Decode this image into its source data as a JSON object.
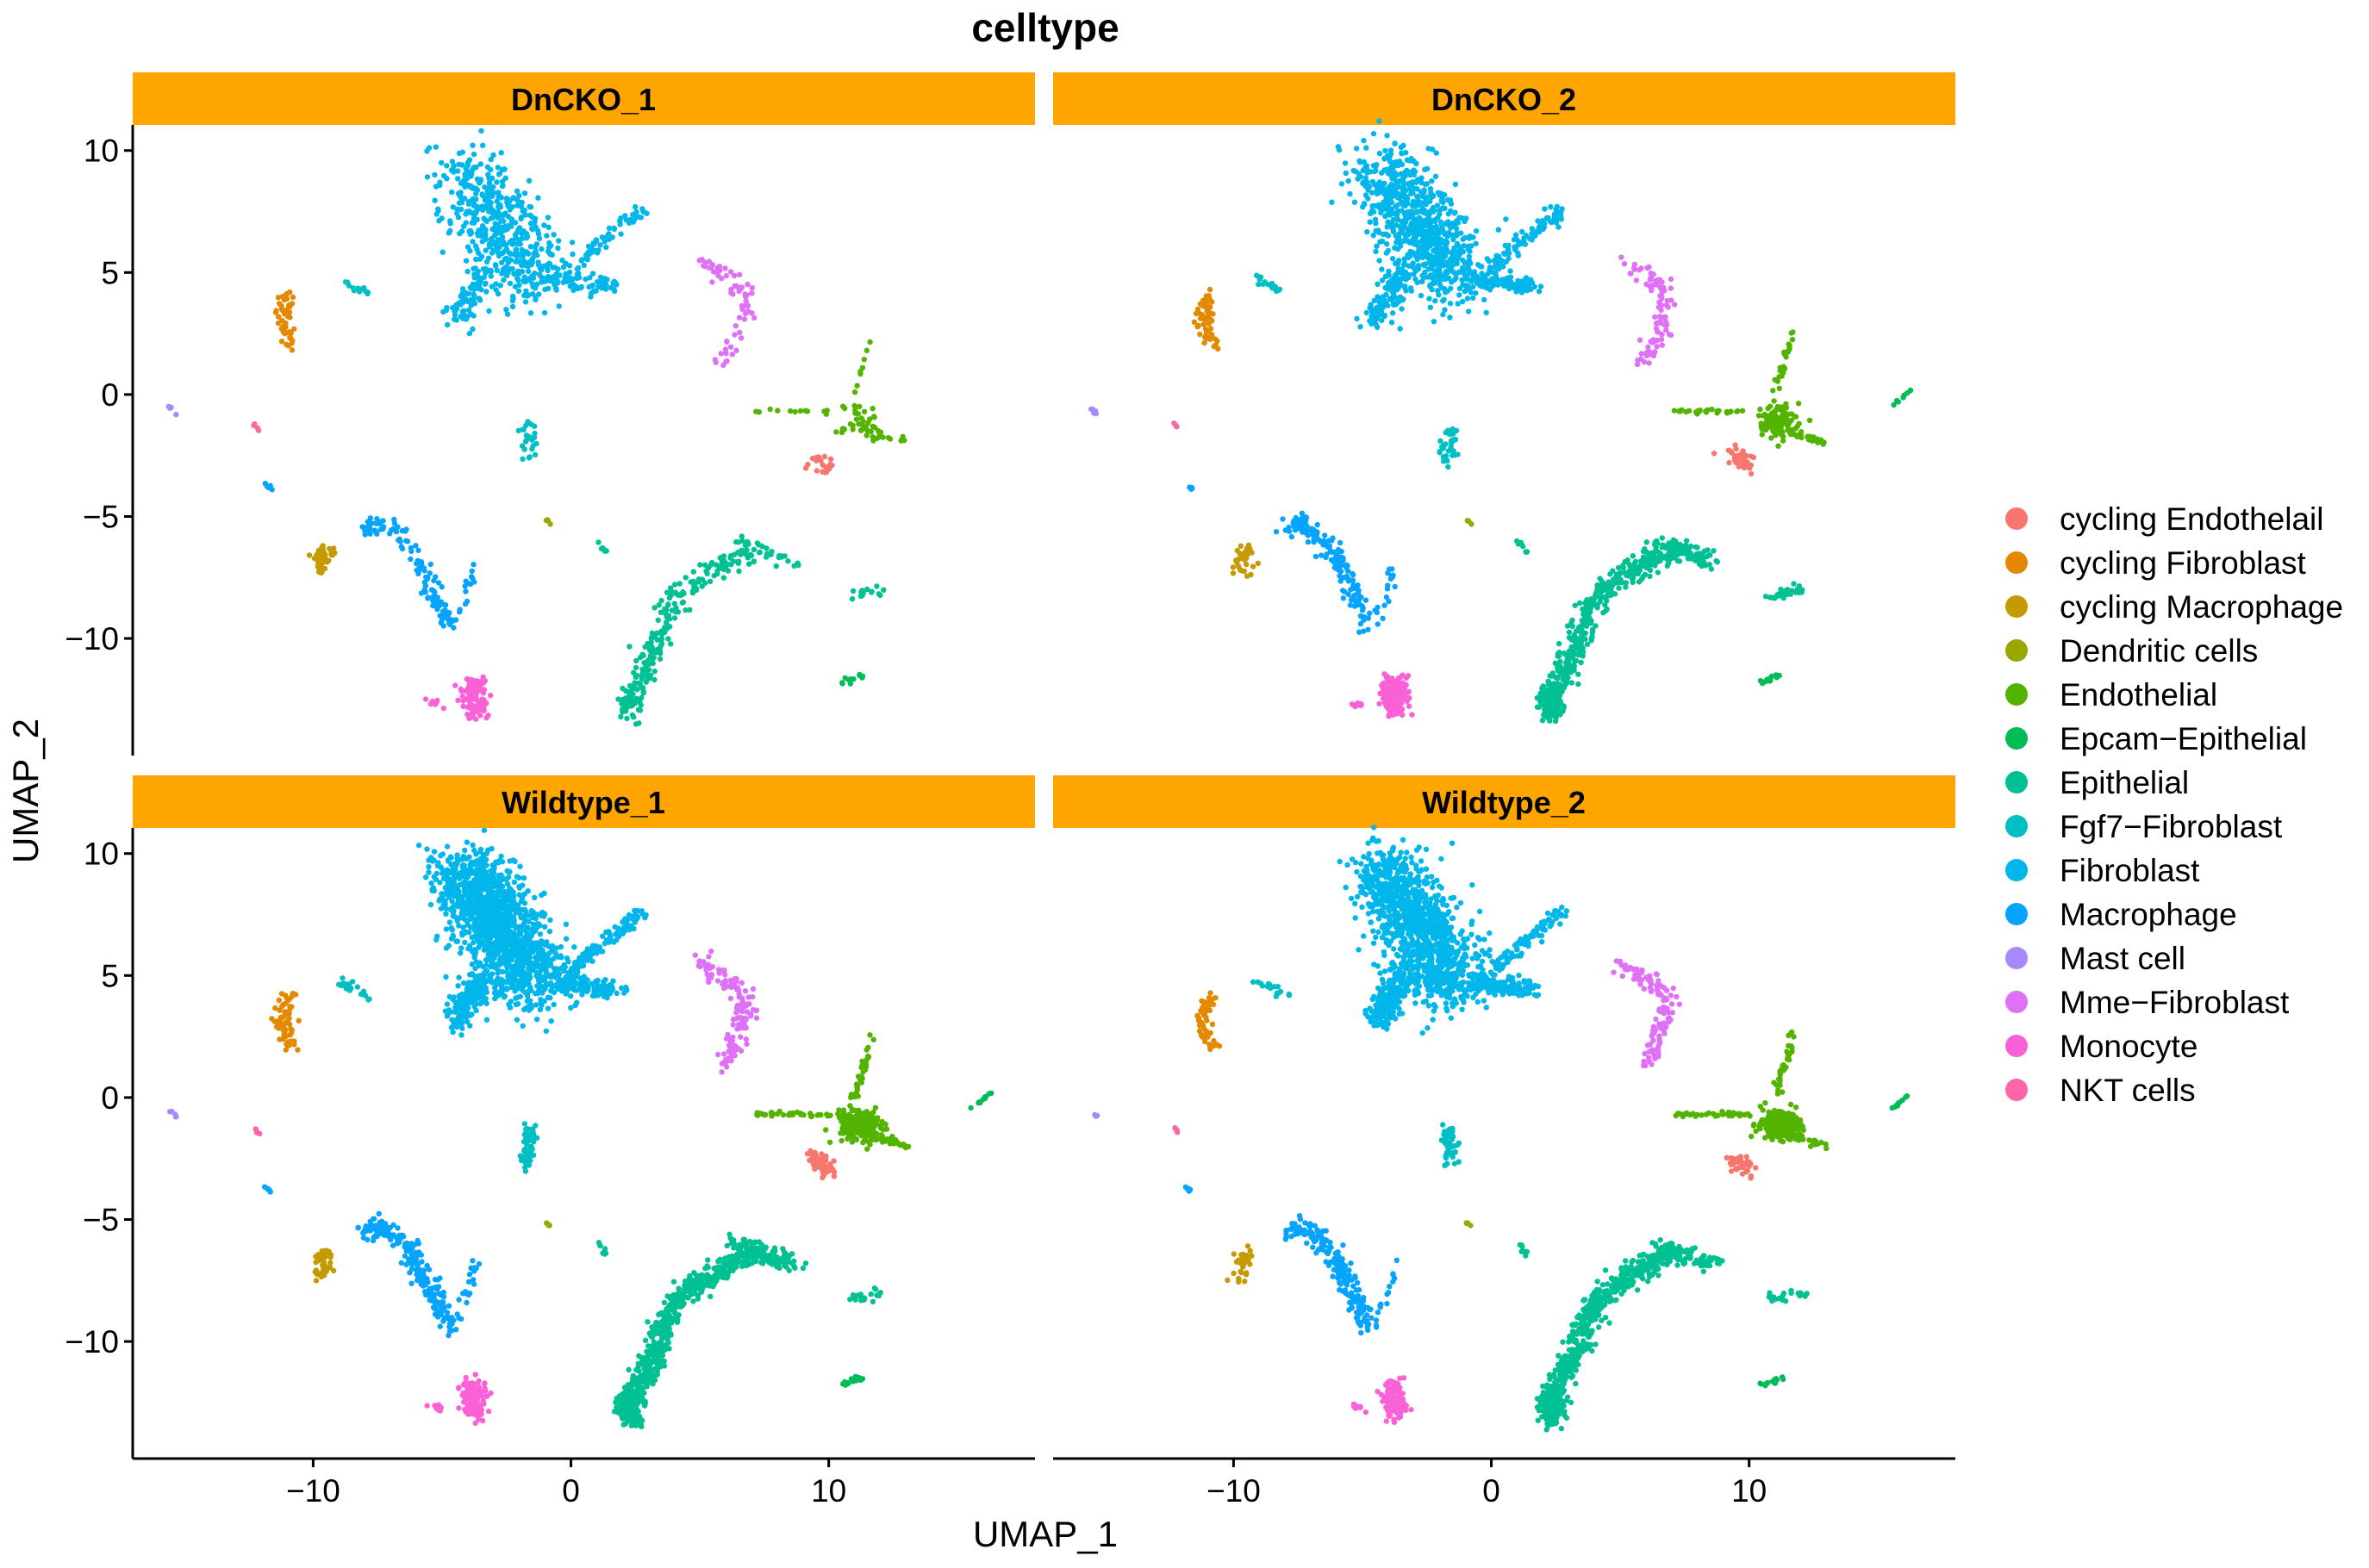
{
  "chart_data": {
    "type": "scatter",
    "title": "celltype",
    "xlabel": "UMAP_1",
    "ylabel": "UMAP_2",
    "xlim": [
      -17,
      18
    ],
    "ylim": [
      -14.8,
      11.05
    ],
    "xticks": [
      -10,
      0,
      10
    ],
    "yticks": [
      10,
      5,
      0,
      -5,
      -10
    ],
    "grid": false,
    "legend_position": "right",
    "strip_color": "#FFA500",
    "panels": [
      "DnCKO_1",
      "DnCKO_2",
      "Wildtype_1",
      "Wildtype_2"
    ],
    "legend": [
      {
        "label": "cycling Endothelail",
        "color": "#F8766D"
      },
      {
        "label": "cycling Fibroblast",
        "color": "#E38900"
      },
      {
        "label": "cycling Macrophage",
        "color": "#C49A00"
      },
      {
        "label": "Dendritic cells",
        "color": "#99A800"
      },
      {
        "label": "Endothelial",
        "color": "#53B400"
      },
      {
        "label": "Epcam−Epithelial",
        "color": "#00BC56"
      },
      {
        "label": "Epithelial",
        "color": "#00C094"
      },
      {
        "label": "Fgf7−Fibroblast",
        "color": "#00BFC4"
      },
      {
        "label": "Fibroblast",
        "color": "#00B6EB"
      },
      {
        "label": "Macrophage",
        "color": "#06A4FF"
      },
      {
        "label": "Mast cell",
        "color": "#A58AFF"
      },
      {
        "label": "Mme−Fibroblast",
        "color": "#DF70F8"
      },
      {
        "label": "Monocyte",
        "color": "#FB61D7"
      },
      {
        "label": "NKT cells",
        "color": "#FF66A8"
      }
    ],
    "clusters": [
      {
        "celltype": 8,
        "path": [
          [
            -4.2,
            9.3
          ],
          [
            -2.5,
            6.5
          ],
          [
            -1.5,
            4.5
          ]
        ],
        "spread": [
          1.3,
          1.2
        ],
        "n": [
          500,
          800,
          1300,
          1100
        ]
      },
      {
        "celltype": 8,
        "path": [
          [
            -3.5,
            5
          ],
          [
            -4.4,
            3.1
          ]
        ],
        "spread": [
          0.5,
          0.4
        ],
        "n": [
          80,
          120,
          200,
          170
        ]
      },
      {
        "celltype": 8,
        "path": [
          [
            -1,
            4.8
          ],
          [
            1.5,
            4.4
          ]
        ],
        "spread": [
          0.5,
          0.3
        ],
        "n": [
          70,
          110,
          160,
          140
        ]
      },
      {
        "celltype": 8,
        "path": [
          [
            0,
            5.2
          ],
          [
            1.5,
            6.5
          ],
          [
            2.7,
            7.6
          ]
        ],
        "spread": [
          0.25,
          0.25
        ],
        "n": [
          60,
          90,
          120,
          100
        ]
      },
      {
        "celltype": 11,
        "path": [
          [
            5,
            5.5
          ],
          [
            6.5,
            4.5
          ],
          [
            6.8,
            3.5
          ],
          [
            6,
            1.3
          ]
        ],
        "spread": [
          0.35,
          0.3
        ],
        "n": [
          70,
          90,
          130,
          120
        ]
      },
      {
        "celltype": 1,
        "path": [
          [
            -11,
            4.2
          ],
          [
            -11.2,
            3
          ],
          [
            -10.8,
            2
          ]
        ],
        "spread": [
          0.3,
          0.2
        ],
        "n": [
          50,
          60,
          70,
          60
        ]
      },
      {
        "celltype": 7,
        "path": [
          [
            -9.2,
            4.8
          ],
          [
            -7.8,
            4.1
          ]
        ],
        "spread": [
          0.15,
          0.15
        ],
        "n": [
          12,
          14,
          20,
          16
        ]
      },
      {
        "celltype": 7,
        "path": [
          [
            -1.6,
            -1.2
          ],
          [
            -1.7,
            -2.8
          ]
        ],
        "spread": [
          0.25,
          0.2
        ],
        "n": [
          25,
          35,
          60,
          50
        ]
      },
      {
        "celltype": 4,
        "path": [
          [
            11,
            -1
          ],
          [
            11.4,
            -1.3
          ]
        ],
        "spread": [
          0.7,
          0.5
        ],
        "n": [
          40,
          120,
          230,
          220
        ]
      },
      {
        "celltype": 4,
        "path": [
          [
            7.2,
            -0.7
          ],
          [
            10,
            -0.7
          ]
        ],
        "spread": [
          0.1,
          0.08
        ],
        "n": [
          12,
          25,
          35,
          35
        ]
      },
      {
        "celltype": 4,
        "path": [
          [
            11,
            0
          ],
          [
            11.7,
            2.6
          ]
        ],
        "spread": [
          0.12,
          0.1
        ],
        "n": [
          8,
          25,
          35,
          35
        ]
      },
      {
        "celltype": 4,
        "path": [
          [
            11.5,
            -1.5
          ],
          [
            13,
            -2
          ]
        ],
        "spread": [
          0.15,
          0.1
        ],
        "n": [
          10,
          30,
          40,
          40
        ]
      },
      {
        "celltype": 0,
        "path": [
          [
            9.3,
            -2.4
          ],
          [
            10,
            -3
          ]
        ],
        "spread": [
          0.3,
          0.35
        ],
        "n": [
          18,
          40,
          50,
          35
        ]
      },
      {
        "celltype": 9,
        "path": [
          [
            -8,
            -5.6
          ],
          [
            -7.5,
            -5.2
          ],
          [
            -6.3,
            -6.2
          ],
          [
            -5.2,
            -8.3
          ],
          [
            -4.8,
            -9.5
          ]
        ],
        "spread": [
          0.35,
          0.3
        ],
        "n": [
          120,
          170,
          220,
          200
        ]
      },
      {
        "celltype": 9,
        "path": [
          [
            -3.7,
            -6.8
          ],
          [
            -4.5,
            -9.5
          ]
        ],
        "spread": [
          0.15,
          0.15
        ],
        "n": [
          15,
          15,
          20,
          15
        ]
      },
      {
        "celltype": 9,
        "path": [
          [
            -11.9,
            -3.6
          ],
          [
            -11.6,
            -3.9
          ]
        ],
        "spread": [
          0.05,
          0.05
        ],
        "n": [
          5,
          5,
          6,
          5
        ]
      },
      {
        "celltype": 2,
        "path": [
          [
            -9.5,
            -6.3
          ],
          [
            -9.7,
            -7.4
          ]
        ],
        "spread": [
          0.3,
          0.2
        ],
        "n": [
          40,
          30,
          45,
          30
        ]
      },
      {
        "celltype": 12,
        "path": [
          [
            -3.8,
            -11.8
          ],
          [
            -3.7,
            -13
          ]
        ],
        "spread": [
          0.4,
          0.4
        ],
        "n": [
          120,
          220,
          140,
          110
        ]
      },
      {
        "celltype": 12,
        "path": [
          [
            -5.4,
            -12.6
          ],
          [
            -5,
            -12.8
          ]
        ],
        "spread": [
          0.15,
          0.12
        ],
        "n": [
          8,
          12,
          10,
          10
        ]
      },
      {
        "celltype": 6,
        "path": [
          [
            2.3,
            -12.6
          ],
          [
            3.2,
            -10.5
          ],
          [
            4,
            -8.4
          ],
          [
            5.5,
            -7.2
          ],
          [
            7.2,
            -6.3
          ]
        ],
        "spread": [
          0.4,
          0.35
        ],
        "n": [
          200,
          400,
          520,
          500
        ]
      },
      {
        "celltype": 6,
        "path": [
          [
            2.2,
            -12.2
          ],
          [
            2.4,
            -13.2
          ]
        ],
        "spread": [
          0.4,
          0.4
        ],
        "n": [
          40,
          120,
          150,
          130
        ]
      },
      {
        "celltype": 6,
        "path": [
          [
            6.5,
            -6
          ],
          [
            8.5,
            -6.8
          ]
        ],
        "spread": [
          0.4,
          0.3
        ],
        "n": [
          30,
          80,
          120,
          90
        ]
      },
      {
        "celltype": 6,
        "path": [
          [
            1,
            -5.9
          ],
          [
            1.4,
            -6.5
          ]
        ],
        "spread": [
          0.06,
          0.06
        ],
        "n": [
          6,
          8,
          8,
          7
        ]
      },
      {
        "celltype": 6,
        "path": [
          [
            10.8,
            -8.3
          ],
          [
            12.1,
            -8
          ]
        ],
        "spread": [
          0.25,
          0.2
        ],
        "n": [
          14,
          25,
          18,
          20
        ]
      },
      {
        "celltype": 5,
        "path": [
          [
            10.5,
            -11.8
          ],
          [
            11.3,
            -11.5
          ]
        ],
        "spread": [
          0.15,
          0.1
        ],
        "n": [
          12,
          14,
          18,
          14
        ]
      },
      {
        "celltype": 5,
        "path": [
          [
            15.5,
            -0.5
          ],
          [
            16.3,
            0.2
          ]
        ],
        "spread": [
          0.04,
          0.04
        ],
        "n": [
          0,
          8,
          12,
          10
        ]
      },
      {
        "celltype": 10,
        "path": [
          [
            -15.6,
            -0.5
          ],
          [
            -15.3,
            -0.8
          ]
        ],
        "spread": [
          0.04,
          0.04
        ],
        "n": [
          4,
          5,
          5,
          4
        ]
      },
      {
        "celltype": 13,
        "path": [
          [
            -12.3,
            -1.2
          ],
          [
            -12.1,
            -1.5
          ]
        ],
        "spread": [
          0.04,
          0.04
        ],
        "n": [
          4,
          5,
          5,
          5
        ]
      },
      {
        "celltype": 3,
        "path": [
          [
            -1,
            -5.1
          ],
          [
            -0.8,
            -5.3
          ]
        ],
        "spread": [
          0.04,
          0.04
        ],
        "n": [
          4,
          4,
          4,
          4
        ]
      }
    ]
  }
}
